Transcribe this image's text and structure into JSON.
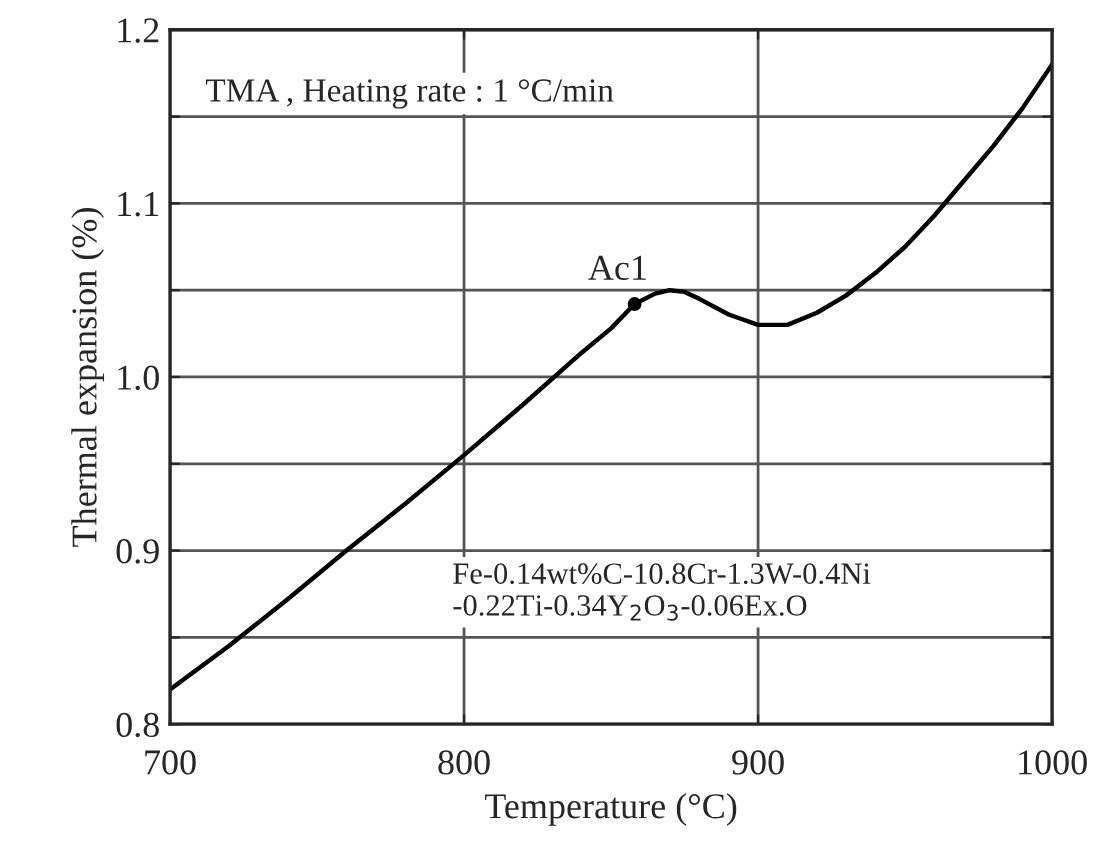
{
  "chart_data": {
    "type": "line",
    "xlabel": "Temperature (°C)",
    "ylabel": "Thermal expansion (%)",
    "xlim": [
      700,
      1000
    ],
    "ylim": [
      0.8,
      1.2
    ],
    "xticks": [
      700,
      800,
      900,
      1000
    ],
    "yticks": [
      0.8,
      {
        "value": 0.85,
        "label": null
      },
      0.9,
      {
        "value": 0.95,
        "label": null
      },
      {
        "value": 1.0,
        "label": "1.0"
      },
      {
        "value": 1.05,
        "label": null
      },
      1.1,
      {
        "value": 1.15,
        "label": null
      },
      1.2
    ],
    "grid": true,
    "line_style": "solid",
    "marker": "none",
    "x": [
      700,
      720,
      740,
      760,
      780,
      800,
      820,
      840,
      850,
      858,
      865,
      870,
      875,
      880,
      890,
      900,
      910,
      920,
      930,
      940,
      950,
      960,
      970,
      980,
      990,
      1000
    ],
    "series": [
      {
        "color": "#000000",
        "values": [
          0.82,
          0.845,
          0.872,
          0.9,
          0.927,
          0.955,
          0.984,
          1.014,
          1.028,
          1.042,
          1.048,
          1.05,
          1.049,
          1.045,
          1.036,
          1.03,
          1.03,
          1.037,
          1.047,
          1.06,
          1.075,
          1.093,
          1.113,
          1.133,
          1.155,
          1.18
        ]
      }
    ],
    "annotations": [
      {
        "text": "Ac1",
        "x": 858,
        "y": 1.042
      },
      "TMA , Heating rate : 1 °C/min",
      "Fe-0.14wt%C-10.8Cr-1.3W-0.4Ni\n-0.22Ti-0.34Y$_{2}$O$_{3}$-0.06Ex.O"
    ]
  }
}
